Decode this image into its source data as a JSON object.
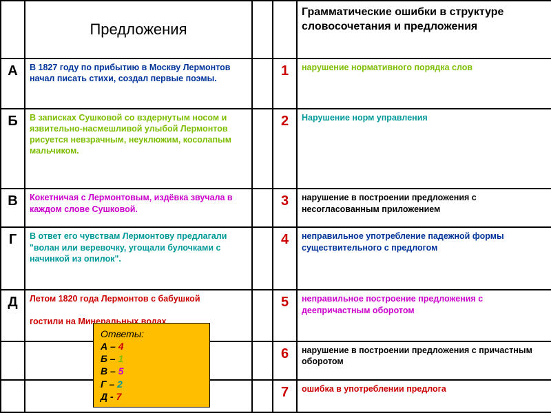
{
  "colors": {
    "darkblue": "#003399",
    "limegreen": "#7ebe00",
    "magenta": "#cc00cc",
    "teal": "#009999",
    "red": "#cc0000",
    "black": "#000000",
    "answerbox_bg": "#ffbf00"
  },
  "headers": {
    "left": "Предложения",
    "right": "Грамматические ошибки в структуре словосочетания и предложения"
  },
  "rows_left": [
    {
      "letter": "А",
      "text": "В 1827 году по прибытию в Москву Лермонтов начал писать стихи, создал первые поэмы.",
      "color": "#003399"
    },
    {
      "letter": "Б",
      "text": "В записках Сушковой со вздернутым носом и язвительно-насмешливой улыбой Лермонтов рисуется невзрачным, неуклюжим, косолапым мальчиком.",
      "color": "#7ebe00"
    },
    {
      "letter": "В",
      "text": "Кокетничая с Лермонтовым, издёвка звучала в каждом слове Сушковой.",
      "color": "#cc00cc"
    },
    {
      "letter": "Г",
      "text": "В ответ его чувствам Лермонтову предлагали \"волан или веревочку, угощали булочками с начинкой из опилок\".",
      "color": "#009999"
    },
    {
      "letter": "Д",
      "text_a": "Летом 1820 года Лермонтов с бабушкой",
      "text_b": "гостили на Минеральных водах",
      "color": "#cc0000"
    }
  ],
  "rows_right": [
    {
      "num": "1",
      "num_color": "#cc0000",
      "text": "нарушение нормативного порядка слов",
      "color": "#7ebe00"
    },
    {
      "num": "2",
      "num_color": "#cc0000",
      "text": "Нарушение норм управления",
      "color": "#009999"
    },
    {
      "num": "3",
      "num_color": "#cc0000",
      "text": "нарушение в построении предложения с несогласованным приложением",
      "color": "#000000"
    },
    {
      "num": "4",
      "num_color": "#cc0000",
      "text": "неправильное употребление падежной формы существительного с предлогом",
      "color": "#003399"
    },
    {
      "num": "5",
      "num_color": "#cc0000",
      "text": "неправильное построение предложения с деепричастным оборотом",
      "color": "#cc00cc"
    },
    {
      "num": "6",
      "num_color": "#cc0000",
      "text": "нарушение в построении предложения с причастным оборотом",
      "color": "#000000"
    },
    {
      "num": "7",
      "num_color": "#cc0000",
      "text": "ошибка  в  употреблении  предлога",
      "color": "#cc0000"
    }
  ],
  "answers": {
    "title": "Ответы:",
    "pairs": [
      {
        "letter": "А",
        "sep": " – ",
        "num": "4",
        "num_color": "#cc0000"
      },
      {
        "letter": "Б",
        "sep": " – ",
        "num": "1",
        "num_color": "#7ebe00"
      },
      {
        "letter": "В",
        "sep": " – ",
        "num": "5",
        "num_color": "#cc00cc"
      },
      {
        "letter": "Г",
        "sep": " – ",
        "num": "2",
        "num_color": "#009999"
      },
      {
        "letter": "Д",
        "sep": " - ",
        "num": "7",
        "num_color": "#cc0000"
      }
    ]
  }
}
